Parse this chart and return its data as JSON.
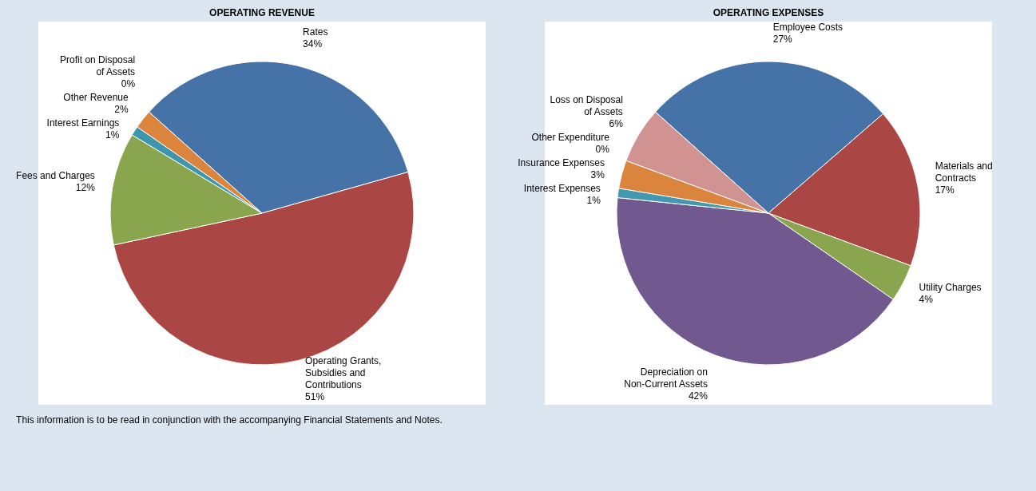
{
  "chart_data": [
    {
      "type": "pie",
      "title": "OPERATING REVENUE",
      "categories": [
        "Rates",
        "Operating Grants, Subsidies and Contributions",
        "Fees and Charges",
        "Interest Earnings",
        "Other Revenue",
        "Profit on Disposal of Assets"
      ],
      "values": [
        34,
        51,
        12,
        1,
        2,
        0
      ],
      "value_labels": [
        "34%",
        "51%",
        "12%",
        "1%",
        "2%",
        "0%"
      ],
      "colors": [
        "#4572a7",
        "#aa4643",
        "#89a54e",
        "#3d96ae",
        "#db843d",
        "#b5cae0"
      ],
      "annotations": [
        "This information is to be read in conjunction with the accompanying Financial Statements and Notes."
      ]
    },
    {
      "type": "pie",
      "title": "OPERATING EXPENSES",
      "categories": [
        "Employee Costs",
        "Materials and Contracts",
        "Utility Charges",
        "Depreciation on Non-Current Assets",
        "Interest Expenses",
        "Insurance Expenses",
        "Other Expenditure",
        "Loss on Disposal of Assets"
      ],
      "values": [
        27,
        17,
        4,
        42,
        1,
        3,
        0,
        6
      ],
      "value_labels": [
        "27%",
        "17%",
        "4%",
        "42%",
        "1%",
        "3%",
        "0%",
        "6%"
      ],
      "colors": [
        "#4572a7",
        "#aa4643",
        "#89a54e",
        "#71588f",
        "#4198af",
        "#db843d",
        "#93a9cf",
        "#d19392"
      ]
    }
  ]
}
